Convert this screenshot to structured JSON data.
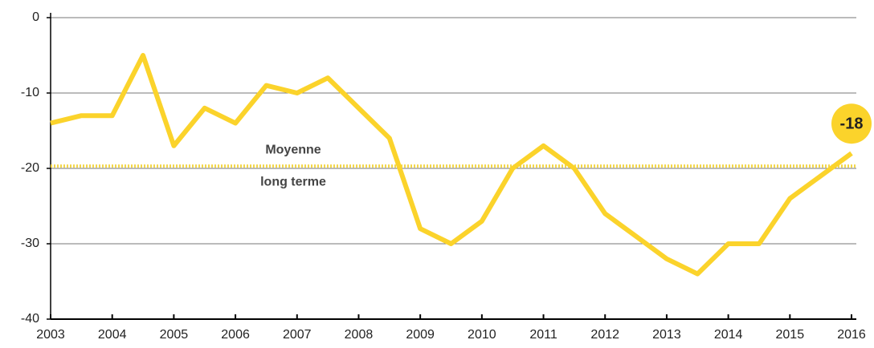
{
  "chart_data": {
    "type": "line",
    "x": [
      2003,
      2003.5,
      2004,
      2004.5,
      2005,
      2005.5,
      2006,
      2006.5,
      2007,
      2007.5,
      2008,
      2008.5,
      2009,
      2009.5,
      2010,
      2010.5,
      2011,
      2011.5,
      2012,
      2012.5,
      2013,
      2013.5,
      2014,
      2014.5,
      2015,
      2015.5,
      2016
    ],
    "series": [
      {
        "color": "#fbd32b",
        "values": [
          -14,
          -13,
          -13,
          -5,
          -17,
          -12,
          -14,
          -9,
          -10,
          -8,
          -12,
          -16,
          -28,
          -30,
          -27,
          -20,
          -17,
          -20,
          -26,
          -29,
          -32,
          -34,
          -30,
          -30,
          -24,
          -21,
          -18
        ]
      }
    ],
    "xlim": [
      2003,
      2016
    ],
    "xticks": [
      2003,
      2004,
      2005,
      2006,
      2007,
      2008,
      2009,
      2010,
      2011,
      2012,
      2013,
      2014,
      2015,
      2016
    ],
    "ylim": [
      -40,
      0
    ],
    "yticks": [
      0,
      -10,
      -20,
      -30,
      -40
    ],
    "grid": true,
    "reference_line": {
      "value": -19.7,
      "label_above": "Moyenne",
      "label_below": "long terme",
      "color": "#f2d64a"
    },
    "annotations": [
      {
        "text": "-18",
        "x": 2016,
        "y": -18
      }
    ]
  }
}
